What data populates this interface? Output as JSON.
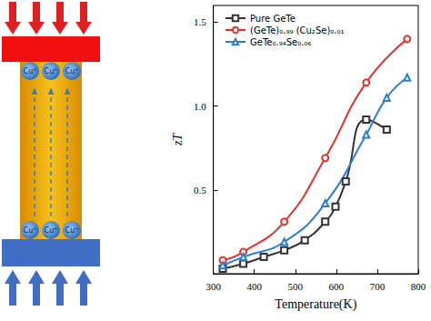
{
  "chart_data": {
    "type": "line",
    "x_label": "Temperature(K)",
    "y_label": "zT",
    "xlim": [
      300,
      800
    ],
    "xticks": [
      300,
      400,
      500,
      600,
      700,
      800
    ],
    "ylim": [
      0,
      1.6
    ],
    "yticks": [
      {
        "value": 0.5,
        "label": "0.5"
      },
      {
        "value": 1.0,
        "label": "1.0"
      },
      {
        "value": 1.5,
        "label": "1.5"
      }
    ],
    "grid": false,
    "legend": "upper left",
    "series": [
      {
        "name": "Pure GeTe",
        "color": "#333333",
        "marker": "square",
        "line_style": "solid",
        "x": [
          323,
          373,
          423,
          473,
          523,
          573,
          598,
          623,
          673,
          723
        ],
        "values": [
          0.03,
          0.06,
          0.1,
          0.14,
          0.2,
          0.31,
          0.4,
          0.55,
          0.92,
          0.86
        ]
      },
      {
        "name": "(GeTe)₀.₉₉ (Cu₂Se)₀.₀₁",
        "color": "#e8312f",
        "marker": "circle",
        "line_style": "solid",
        "x": [
          323,
          373,
          473,
          573,
          673,
          773
        ],
        "values": [
          0.08,
          0.13,
          0.31,
          0.69,
          1.14,
          1.4
        ]
      },
      {
        "name": "GeTe₀.₉₄Se₀.₀₆",
        "color": "#2a7fd4",
        "marker": "triangle",
        "line_style": "solid",
        "x": [
          323,
          373,
          473,
          573,
          673,
          723,
          773
        ],
        "values": [
          0.05,
          0.1,
          0.19,
          0.42,
          0.83,
          1.05,
          1.17
        ]
      }
    ]
  },
  "schematic": {
    "top_ions": [
      "Cu⁺",
      "Cu⁺",
      "Cu⁺"
    ],
    "bottom_ions": [
      "Cu⁺",
      "Cu⁺",
      "Cu⁺"
    ]
  }
}
